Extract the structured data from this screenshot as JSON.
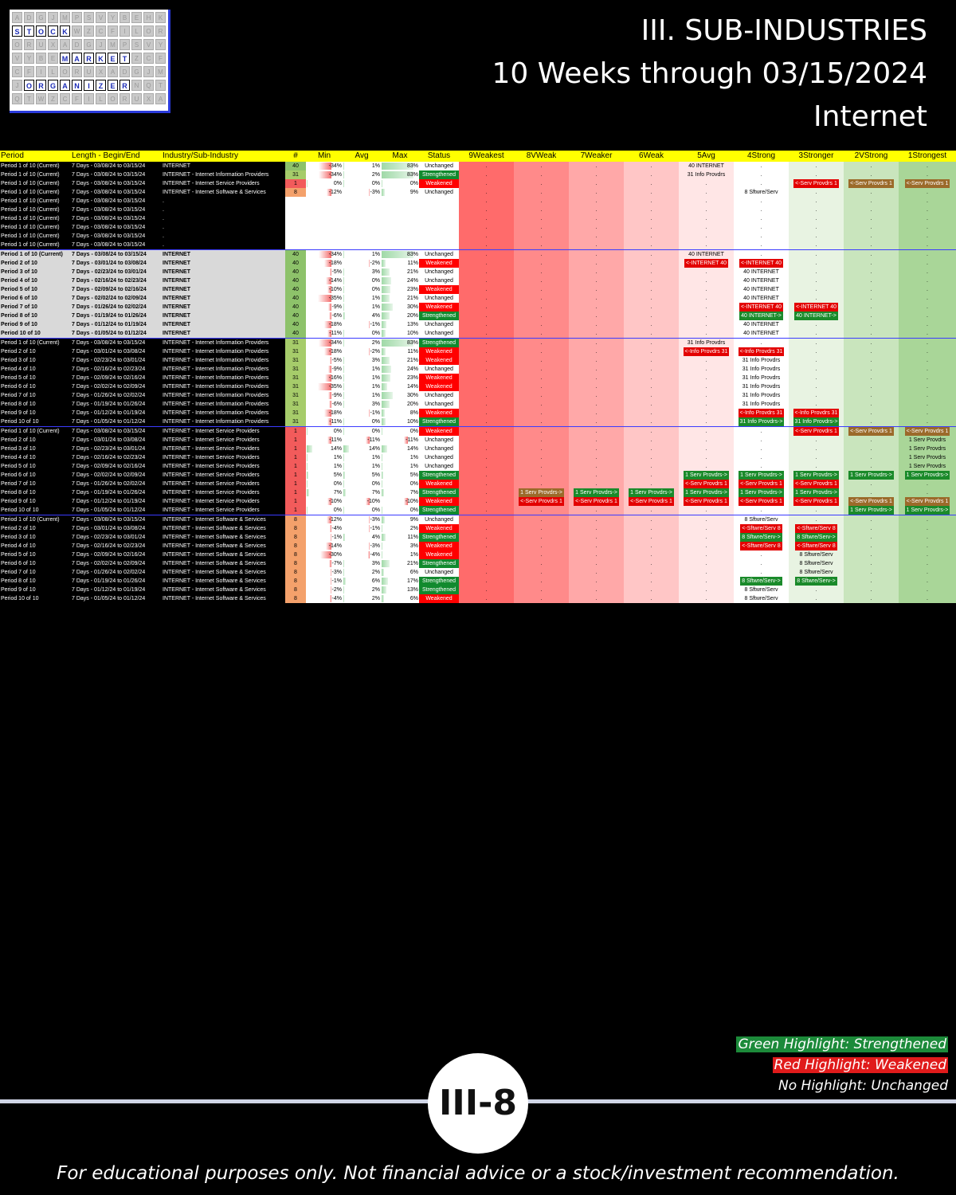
{
  "logo": {
    "words": [
      "STOCK",
      "MARKET",
      "ORGANIZER"
    ]
  },
  "title": {
    "line1": "III. SUB-INDUSTRIES",
    "line2": "10 Weeks through 03/15/2024",
    "line3": "Internet"
  },
  "table": {
    "headers": [
      "Period",
      "Length - Begin/End",
      "Industry/Sub-Industry",
      "#",
      "Min",
      "Avg",
      "Max",
      "Status",
      "9Weakest",
      "8VWeak",
      "7Weaker",
      "6Weak",
      "5Avg",
      "4Strong",
      "3Stronger",
      "2VStrong",
      "1Strongest"
    ],
    "rows": [
      {
        "g": 1,
        "p": "Period 1 of 10 (Current)",
        "l": "7 Days - 03/08/24 to 03/15/24",
        "i": "INTERNET",
        "n": "40",
        "mn": "-34%",
        "av": "1%",
        "mx": "83%",
        "st": "Unchanged",
        "cells": {
          "5": "40 INTERNET"
        }
      },
      {
        "g": 1,
        "p": "Period 1 of 10 (Current)",
        "l": "7 Days - 03/08/24 to 03/15/24",
        "i": "INTERNET - Internet Information Providers",
        "n": "31",
        "mn": "-34%",
        "av": "2%",
        "mx": "83%",
        "st": "Strengthened",
        "cells": {
          "5": "31 Info Provdrs"
        }
      },
      {
        "g": 1,
        "p": "Period 1 of 10 (Current)",
        "l": "7 Days - 03/08/24 to 03/15/24",
        "i": "INTERNET - Internet Service Providers",
        "n": "1",
        "mn": "0%",
        "av": "0%",
        "mx": "0%",
        "st": "Weakened",
        "cells": {
          "3": "w:<-Serv Provdrs 1",
          "2": "b:<-Serv Provdrs 1",
          "1": "b:<-Serv Provdrs 1"
        }
      },
      {
        "g": 1,
        "p": "Period 1 of 10 (Current)",
        "l": "7 Days - 03/08/24 to 03/15/24",
        "i": "INTERNET - Internet Software & Services",
        "n": "8",
        "mn": "-12%",
        "av": "-3%",
        "mx": "9%",
        "st": "Unchanged",
        "cells": {
          "4": "8 Sftwre/Serv"
        }
      },
      {
        "g": 1,
        "p": "Period 1 of 10 (Current)",
        "l": "7 Days - 03/08/24 to 03/15/24",
        "i": ".",
        "n": "",
        "mn": "",
        "av": "",
        "mx": "",
        "st": "",
        "cells": {}
      },
      {
        "g": 1,
        "p": "Period 1 of 10 (Current)",
        "l": "7 Days - 03/08/24 to 03/15/24",
        "i": ".",
        "n": "",
        "mn": "",
        "av": "",
        "mx": "",
        "st": "",
        "cells": {}
      },
      {
        "g": 1,
        "p": "Period 1 of 10 (Current)",
        "l": "7 Days - 03/08/24 to 03/15/24",
        "i": ".",
        "n": "",
        "mn": "",
        "av": "",
        "mx": "",
        "st": "",
        "cells": {}
      },
      {
        "g": 1,
        "p": "Period 1 of 10 (Current)",
        "l": "7 Days - 03/08/24 to 03/15/24",
        "i": ".",
        "n": "",
        "mn": "",
        "av": "",
        "mx": "",
        "st": "",
        "cells": {}
      },
      {
        "g": 1,
        "p": "Period 1 of 10 (Current)",
        "l": "7 Days - 03/08/24 to 03/15/24",
        "i": ".",
        "n": "",
        "mn": "",
        "av": "",
        "mx": "",
        "st": "",
        "cells": {}
      },
      {
        "g": 1,
        "p": "Period 1 of 10 (Current)",
        "l": "7 Days - 03/08/24 to 03/15/24",
        "i": ".",
        "n": "",
        "mn": "",
        "av": "",
        "mx": "",
        "st": "",
        "cells": {}
      },
      {
        "g": 2,
        "p": "Period 1 of 10 (Current)",
        "l": "7 Days - 03/08/24 to 03/15/24",
        "i": "INTERNET",
        "n": "40",
        "mn": "-34%",
        "av": "1%",
        "mx": "83%",
        "st": "Unchanged",
        "cells": {
          "5": "40 INTERNET"
        }
      },
      {
        "g": 2,
        "p": "Period 2 of 10",
        "l": "7 Days - 03/01/24 to 03/08/24",
        "i": "INTERNET",
        "n": "40",
        "mn": "-18%",
        "av": "-2%",
        "mx": "11%",
        "st": "Weakened",
        "cells": {
          "5": "w:<-INTERNET 40",
          "4": "w:<-INTERNET 40"
        }
      },
      {
        "g": 2,
        "p": "Period 3 of 10",
        "l": "7 Days - 02/23/24 to 03/01/24",
        "i": "INTERNET",
        "n": "40",
        "mn": "-5%",
        "av": "3%",
        "mx": "21%",
        "st": "Unchanged",
        "cells": {
          "4": "40 INTERNET"
        }
      },
      {
        "g": 2,
        "p": "Period 4 of 10",
        "l": "7 Days - 02/16/24 to 02/23/24",
        "i": "INTERNET",
        "n": "40",
        "mn": "-14%",
        "av": "0%",
        "mx": "24%",
        "st": "Unchanged",
        "cells": {
          "4": "40 INTERNET"
        }
      },
      {
        "g": 2,
        "p": "Period 5 of 10",
        "l": "7 Days - 02/09/24 to 02/16/24",
        "i": "INTERNET",
        "n": "40",
        "mn": "-10%",
        "av": "0%",
        "mx": "23%",
        "st": "Weakened",
        "cells": {
          "4": "40 INTERNET"
        }
      },
      {
        "g": 2,
        "p": "Period 6 of 10",
        "l": "7 Days - 02/02/24 to 02/09/24",
        "i": "INTERNET",
        "n": "40",
        "mn": "-35%",
        "av": "1%",
        "mx": "21%",
        "st": "Unchanged",
        "cells": {
          "4": "40 INTERNET"
        }
      },
      {
        "g": 2,
        "p": "Period 7 of 10",
        "l": "7 Days - 01/26/24 to 02/02/24",
        "i": "INTERNET",
        "n": "40",
        "mn": "-9%",
        "av": "1%",
        "mx": "30%",
        "st": "Weakened",
        "cells": {
          "4": "w:<-INTERNET 40",
          "3": "w:<-INTERNET 40"
        }
      },
      {
        "g": 2,
        "p": "Period 8 of 10",
        "l": "7 Days - 01/19/24 to 01/26/24",
        "i": "INTERNET",
        "n": "40",
        "mn": "-6%",
        "av": "4%",
        "mx": "20%",
        "st": "Strengthened",
        "cells": {
          "4": "s:40 INTERNET->",
          "3": "s:40 INTERNET->"
        }
      },
      {
        "g": 2,
        "p": "Period 9 of 10",
        "l": "7 Days - 01/12/24 to 01/19/24",
        "i": "INTERNET",
        "n": "40",
        "mn": "-18%",
        "av": "-1%",
        "mx": "13%",
        "st": "Unchanged",
        "cells": {
          "4": "40 INTERNET"
        }
      },
      {
        "g": 2,
        "p": "Period 10 of 10",
        "l": "7 Days - 01/05/24 to 01/12/24",
        "i": "INTERNET",
        "n": "40",
        "mn": "-11%",
        "av": "0%",
        "mx": "10%",
        "st": "Unchanged",
        "cells": {
          "4": "40 INTERNET"
        }
      },
      {
        "g": 3,
        "p": "Period 1 of 10 (Current)",
        "l": "7 Days - 03/08/24 to 03/15/24",
        "i": "INTERNET - Internet Information Providers",
        "n": "31",
        "mn": "-34%",
        "av": "2%",
        "mx": "83%",
        "st": "Strengthened",
        "cells": {
          "5": "31 Info Provdrs"
        }
      },
      {
        "g": 3,
        "p": "Period 2 of 10",
        "l": "7 Days - 03/01/24 to 03/08/24",
        "i": "INTERNET - Internet Information Providers",
        "n": "31",
        "mn": "-18%",
        "av": "-2%",
        "mx": "11%",
        "st": "Weakened",
        "cells": {
          "5": "w:<-Info Provdrs 31",
          "4": "w:<-Info Provdrs 31"
        }
      },
      {
        "g": 3,
        "p": "Period 3 of 10",
        "l": "7 Days - 02/23/24 to 03/01/24",
        "i": "INTERNET - Internet Information Providers",
        "n": "31",
        "mn": "-5%",
        "av": "3%",
        "mx": "21%",
        "st": "Weakened",
        "cells": {
          "4": "31 Info Provdrs"
        }
      },
      {
        "g": 3,
        "p": "Period 4 of 10",
        "l": "7 Days - 02/16/24 to 02/23/24",
        "i": "INTERNET - Internet Information Providers",
        "n": "31",
        "mn": "-9%",
        "av": "1%",
        "mx": "24%",
        "st": "Unchanged",
        "cells": {
          "4": "31 Info Provdrs"
        }
      },
      {
        "g": 3,
        "p": "Period 5 of 10",
        "l": "7 Days - 02/09/24 to 02/16/24",
        "i": "INTERNET - Internet Information Providers",
        "n": "31",
        "mn": "-16%",
        "av": "1%",
        "mx": "23%",
        "st": "Weakened",
        "cells": {
          "4": "31 Info Provdrs"
        }
      },
      {
        "g": 3,
        "p": "Period 6 of 10",
        "l": "7 Days - 02/02/24 to 02/09/24",
        "i": "INTERNET - Internet Information Providers",
        "n": "31",
        "mn": "-35%",
        "av": "1%",
        "mx": "14%",
        "st": "Weakened",
        "cells": {
          "4": "31 Info Provdrs"
        }
      },
      {
        "g": 3,
        "p": "Period 7 of 10",
        "l": "7 Days - 01/26/24 to 02/02/24",
        "i": "INTERNET - Internet Information Providers",
        "n": "31",
        "mn": "-9%",
        "av": "1%",
        "mx": "30%",
        "st": "Unchanged",
        "cells": {
          "4": "31 Info Provdrs"
        }
      },
      {
        "g": 3,
        "p": "Period 8 of 10",
        "l": "7 Days - 01/19/24 to 01/26/24",
        "i": "INTERNET - Internet Information Providers",
        "n": "31",
        "mn": "-6%",
        "av": "3%",
        "mx": "20%",
        "st": "Unchanged",
        "cells": {
          "4": "31 Info Provdrs"
        }
      },
      {
        "g": 3,
        "p": "Period 9 of 10",
        "l": "7 Days - 01/12/24 to 01/19/24",
        "i": "INTERNET - Internet Information Providers",
        "n": "31",
        "mn": "-18%",
        "av": "-1%",
        "mx": "8%",
        "st": "Weakened",
        "cells": {
          "4": "w:<-Info Provdrs 31",
          "3": "w:<-Info Provdrs 31"
        }
      },
      {
        "g": 3,
        "p": "Period 10 of 10",
        "l": "7 Days - 01/05/24 to 01/12/24",
        "i": "INTERNET - Internet Information Providers",
        "n": "31",
        "mn": "-11%",
        "av": "0%",
        "mx": "10%",
        "st": "Strengthened",
        "cells": {
          "4": "s:31 Info Provdrs->",
          "3": "s:31 Info Provdrs->"
        }
      },
      {
        "g": 4,
        "p": "Period 1 of 10 (Current)",
        "l": "7 Days - 03/08/24 to 03/15/24",
        "i": "INTERNET - Internet Service Providers",
        "n": "1",
        "mn": "0%",
        "av": "0%",
        "mx": "0%",
        "st": "Weakened",
        "cells": {
          "3": "w:<-Serv Provdrs 1",
          "2": "b:<-Serv Provdrs 1",
          "1": "b:<-Serv Provdrs 1"
        }
      },
      {
        "g": 4,
        "p": "Period 2 of 10",
        "l": "7 Days - 03/01/24 to 03/08/24",
        "i": "INTERNET - Internet Service Providers",
        "n": "1",
        "mn": "-11%",
        "av": "-11%",
        "mx": "-11%",
        "st": "Unchanged",
        "cells": {
          "1": "1 Serv Provdrs"
        }
      },
      {
        "g": 4,
        "p": "Period 3 of 10",
        "l": "7 Days - 02/23/24 to 03/01/24",
        "i": "INTERNET - Internet Service Providers",
        "n": "1",
        "mn": "14%",
        "av": "14%",
        "mx": "14%",
        "st": "Unchanged",
        "cells": {
          "1": "1 Serv Provdrs"
        }
      },
      {
        "g": 4,
        "p": "Period 4 of 10",
        "l": "7 Days - 02/16/24 to 02/23/24",
        "i": "INTERNET - Internet Service Providers",
        "n": "1",
        "mn": "1%",
        "av": "1%",
        "mx": "1%",
        "st": "Unchanged",
        "cells": {
          "1": "1 Serv Provdrs"
        }
      },
      {
        "g": 4,
        "p": "Period 5 of 10",
        "l": "7 Days - 02/09/24 to 02/16/24",
        "i": "INTERNET - Internet Service Providers",
        "n": "1",
        "mn": "1%",
        "av": "1%",
        "mx": "1%",
        "st": "Unchanged",
        "cells": {
          "1": "1 Serv Provdrs"
        }
      },
      {
        "g": 4,
        "p": "Period 6 of 10",
        "l": "7 Days - 02/02/24 to 02/09/24",
        "i": "INTERNET - Internet Service Providers",
        "n": "1",
        "mn": "5%",
        "av": "5%",
        "mx": "5%",
        "st": "Strengthened",
        "cells": {
          "5": "s:1 Serv Provdrs->",
          "4": "s:1 Serv Provdrs->",
          "3": "s:1 Serv Provdrs->",
          "2": "s:1 Serv Provdrs->",
          "1": "s:1 Serv Provdrs->"
        }
      },
      {
        "g": 4,
        "p": "Period 7 of 10",
        "l": "7 Days - 01/26/24 to 02/02/24",
        "i": "INTERNET - Internet Service Providers",
        "n": "1",
        "mn": "0%",
        "av": "0%",
        "mx": "0%",
        "st": "Weakened",
        "cells": {
          "5": "w:<-Serv Provdrs 1",
          "4": "w:<-Serv Provdrs 1",
          "3": "w:<-Serv Provdrs 1"
        }
      },
      {
        "g": 4,
        "p": "Period 8 of 10",
        "l": "7 Days - 01/19/24 to 01/26/24",
        "i": "INTERNET - Internet Service Providers",
        "n": "1",
        "mn": "7%",
        "av": "7%",
        "mx": "7%",
        "st": "Strengthened",
        "cells": {
          "8": "b:1 Serv Provdrs->",
          "7": "s:1 Serv Provdrs->",
          "6": "s:1 Serv Provdrs->",
          "5": "s:1 Serv Provdrs->",
          "4": "s:1 Serv Provdrs->",
          "3": "s:1 Serv Provdrs->"
        }
      },
      {
        "g": 4,
        "p": "Period 9 of 10",
        "l": "7 Days - 01/12/24 to 01/19/24",
        "i": "INTERNET - Internet Service Providers",
        "n": "1",
        "mn": "-10%",
        "av": "-10%",
        "mx": "-10%",
        "st": "Weakened",
        "cells": {
          "8": "w:<-Serv Provdrs 1",
          "7": "w:<-Serv Provdrs 1",
          "6": "w:<-Serv Provdrs 1",
          "5": "w:<-Serv Provdrs 1",
          "4": "w:<-Serv Provdrs 1",
          "3": "w:<-Serv Provdrs 1",
          "2": "b:<-Serv Provdrs 1",
          "1": "b:<-Serv Provdrs 1"
        }
      },
      {
        "g": 4,
        "p": "Period 10 of 10",
        "l": "7 Days - 01/05/24 to 01/12/24",
        "i": "INTERNET - Internet Service Providers",
        "n": "1",
        "mn": "0%",
        "av": "0%",
        "mx": "0%",
        "st": "Strengthened",
        "cells": {
          "2": "s:1 Serv Provdrs->",
          "1": "s:1 Serv Provdrs->"
        }
      },
      {
        "g": 5,
        "p": "Period 1 of 10 (Current)",
        "l": "7 Days - 03/08/24 to 03/15/24",
        "i": "INTERNET - Internet Software & Services",
        "n": "8",
        "mn": "-12%",
        "av": "-3%",
        "mx": "9%",
        "st": "Unchanged",
        "cells": {
          "4": "8 Sftwre/Serv"
        }
      },
      {
        "g": 5,
        "p": "Period 2 of 10",
        "l": "7 Days - 03/01/24 to 03/08/24",
        "i": "INTERNET - Internet Software & Services",
        "n": "8",
        "mn": "-4%",
        "av": "-1%",
        "mx": "2%",
        "st": "Weakened",
        "cells": {
          "4": "w:<-Sftwre/Serv 8",
          "3": "w:<-Sftwre/Serv 8"
        }
      },
      {
        "g": 5,
        "p": "Period 3 of 10",
        "l": "7 Days - 02/23/24 to 03/01/24",
        "i": "INTERNET - Internet Software & Services",
        "n": "8",
        "mn": "-1%",
        "av": "4%",
        "mx": "11%",
        "st": "Strengthened",
        "cells": {
          "4": "s:8 Sftwre/Serv->",
          "3": "s:8 Sftwre/Serv->"
        }
      },
      {
        "g": 5,
        "p": "Period 4 of 10",
        "l": "7 Days - 02/16/24 to 02/23/24",
        "i": "INTERNET - Internet Software & Services",
        "n": "8",
        "mn": "-14%",
        "av": "-3%",
        "mx": "3%",
        "st": "Weakened",
        "cells": {
          "4": "w:<-Sftwre/Serv 8",
          "3": "w:<-Sftwre/Serv 8"
        }
      },
      {
        "g": 5,
        "p": "Period 5 of 10",
        "l": "7 Days - 02/09/24 to 02/16/24",
        "i": "INTERNET - Internet Software & Services",
        "n": "8",
        "mn": "-30%",
        "av": "-4%",
        "mx": "1%",
        "st": "Weakened",
        "cells": {
          "3": "8 Sftwre/Serv"
        }
      },
      {
        "g": 5,
        "p": "Period 6 of 10",
        "l": "7 Days - 02/02/24 to 02/09/24",
        "i": "INTERNET - Internet Software & Services",
        "n": "8",
        "mn": "-7%",
        "av": "3%",
        "mx": "21%",
        "st": "Strengthened",
        "cells": {
          "3": "8 Sftwre/Serv"
        }
      },
      {
        "g": 5,
        "p": "Period 7 of 10",
        "l": "7 Days - 01/26/24 to 02/02/24",
        "i": "INTERNET - Internet Software & Services",
        "n": "8",
        "mn": "-3%",
        "av": "2%",
        "mx": "6%",
        "st": "Unchanged",
        "cells": {
          "3": "8 Sftwre/Serv"
        }
      },
      {
        "g": 5,
        "p": "Period 8 of 10",
        "l": "7 Days - 01/19/24 to 01/26/24",
        "i": "INTERNET - Internet Software & Services",
        "n": "8",
        "mn": "-1%",
        "av": "6%",
        "mx": "17%",
        "st": "Strengthened",
        "cells": {
          "4": "s:8 Sftwre/Serv->",
          "3": "s:8 Sftwre/Serv->"
        }
      },
      {
        "g": 5,
        "p": "Period 9 of 10",
        "l": "7 Days - 01/12/24 to 01/19/24",
        "i": "INTERNET - Internet Software & Services",
        "n": "8",
        "mn": "-2%",
        "av": "2%",
        "mx": "13%",
        "st": "Strengthened",
        "cells": {
          "4": "8 Sftwre/Serv"
        }
      },
      {
        "g": 5,
        "p": "Period 10 of 10",
        "l": "7 Days - 01/05/24 to 01/12/24",
        "i": "INTERNET - Internet Software & Services",
        "n": "8",
        "mn": "-4%",
        "av": "2%",
        "mx": "6%",
        "st": "Weakened",
        "cells": {
          "4": "8 Sftwre/Serv"
        }
      }
    ],
    "num_colors": {
      "40": "#8dc26a",
      "31": "#a6cc6a",
      "8": "#f4a16b",
      "1": "#f25b5b"
    },
    "rank_colors": [
      "#ff6b6b",
      "#ff8a8a",
      "#ffa8a8",
      "#ffc6c6",
      "#ffe6e6",
      "#ffffff",
      "#e8f3e2",
      "#c9e5bd",
      "#a9d698",
      "#82c16e"
    ]
  },
  "legend": {
    "green": "Green Highlight: Strengthened",
    "red": "Red Highlight: Weakened",
    "none": "No Highlight: Unchanged"
  },
  "page_badge": "III-8",
  "footer": "For educational purposes only. Not financial advice or a stock/investment recommendation."
}
